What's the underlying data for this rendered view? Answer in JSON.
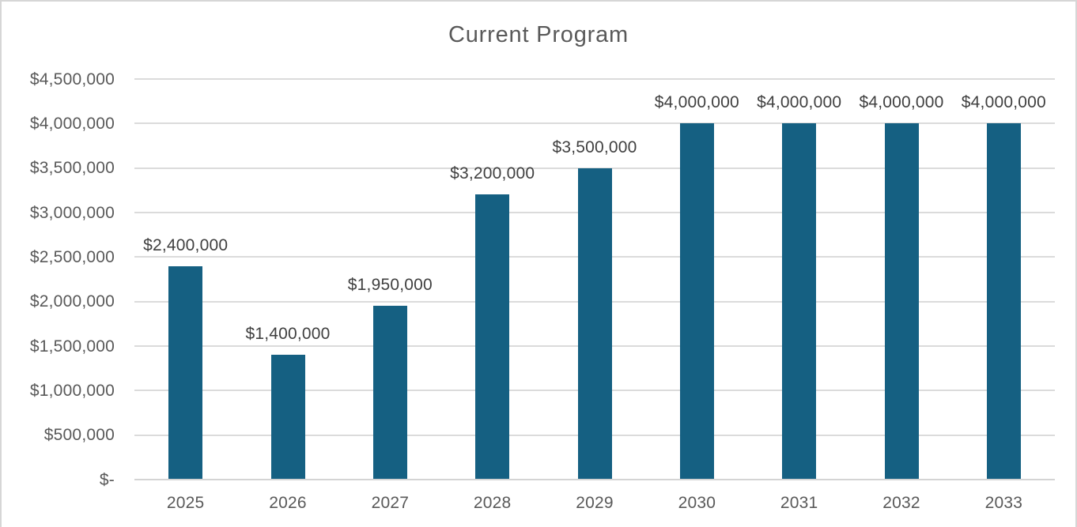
{
  "chart_data": {
    "type": "bar",
    "title": "Current Program",
    "categories": [
      "2025",
      "2026",
      "2027",
      "2028",
      "2029",
      "2030",
      "2031",
      "2032",
      "2033"
    ],
    "values": [
      2400000,
      1400000,
      1950000,
      3200000,
      3500000,
      4000000,
      4000000,
      4000000,
      4000000
    ],
    "data_labels": [
      "$2,400,000",
      "$1,400,000",
      "$1,950,000",
      "$3,200,000",
      "$3,500,000",
      "$4,000,000",
      "$4,000,000",
      "$4,000,000",
      "$4,000,000"
    ],
    "y_ticks": [
      {
        "label": "$4,500,000",
        "value": 4500000
      },
      {
        "label": "$4,000,000",
        "value": 4000000
      },
      {
        "label": "$3,500,000",
        "value": 3500000
      },
      {
        "label": "$3,000,000",
        "value": 3000000
      },
      {
        "label": "$2,500,000",
        "value": 2500000
      },
      {
        "label": "$2,000,000",
        "value": 2000000
      },
      {
        "label": "$1,500,000",
        "value": 1500000
      },
      {
        "label": "$1,000,000",
        "value": 1000000
      },
      {
        "label": "$500,000",
        "value": 500000
      },
      {
        "label": "$-",
        "value": 0
      }
    ],
    "xlabel": "",
    "ylabel": "",
    "ylim": [
      0,
      4500000
    ],
    "grid": true,
    "legend": "none",
    "colors": {
      "bar": "#156082",
      "data_label_text": "#404040",
      "axis_text": "#595959",
      "gridline": "#dbdbdb",
      "frame_border": "#d6d6d6"
    }
  }
}
